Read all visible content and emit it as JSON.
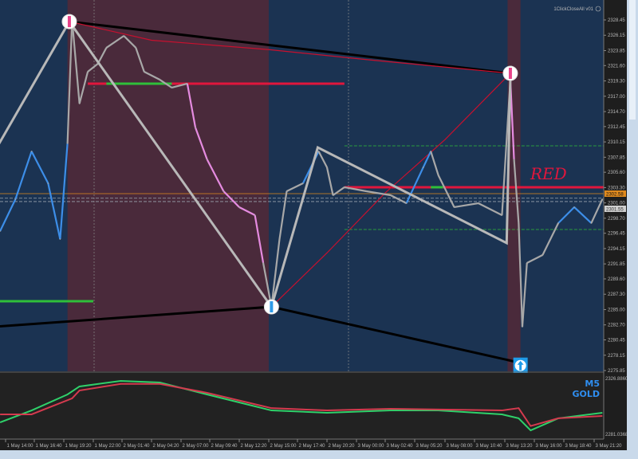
{
  "window": {
    "expert_label": "1ClickCloseAll v01",
    "info_icon": "info-circle-icon"
  },
  "panel_labels": {
    "timeframe": "M5",
    "symbol": "GOLD"
  },
  "annotation_text": "RED",
  "price_tags": {
    "orange": "2302.58",
    "gray": "2301.55"
  },
  "indicator_scale": {
    "top": "2326.8860",
    "bottom": "2281.0368"
  },
  "colors": {
    "background": "#1b3352",
    "session_shade": "#4a2a3b",
    "price": "#a8a8a8",
    "price_up": "#3d8ee8",
    "price_down": "#e58be0",
    "level_red": "#e0163c",
    "level_green": "#2fbf3a",
    "zigzag": "#b8b8b8",
    "trend_black": "#000000",
    "curve_red": "#c8102e",
    "orange": "#e08a1e",
    "indicator_green": "#2fd16a",
    "indicator_red": "#d43a4e"
  },
  "chart_data": {
    "type": "line",
    "title": "",
    "ylim": [
      2275.85,
      2328.45
    ],
    "y_ticks": [
      "2328.45",
      "2326.15",
      "2323.85",
      "2321.60",
      "2319.30",
      "2317.00",
      "2314.70",
      "2312.45",
      "2310.15",
      "2307.85",
      "2305.60",
      "2303.30",
      "2301.00",
      "2298.70",
      "2296.45",
      "2294.15",
      "2291.85",
      "2289.60",
      "2287.30",
      "2285.00",
      "2282.70",
      "2280.45",
      "2278.15",
      "2275.85"
    ],
    "x_ticks": [
      "1 May 14:00",
      "1 May 16:40",
      "1 May 19:20",
      "1 May 22:00",
      "2 May 01:40",
      "2 May 04:20",
      "2 May 07:00",
      "2 May 09:40",
      "2 May 12:20",
      "2 May 15:00",
      "2 May 17:40",
      "2 May 20:20",
      "3 May 00:00",
      "3 May 02:40",
      "3 May 05:20",
      "3 May 08:00",
      "3 May 10:40",
      "3 May 13:20",
      "3 May 16:00",
      "3 May 18:40",
      "3 May 21:20"
    ],
    "sessions_shaded": [
      [
        "1 May 19:40",
        "2 May 15:00"
      ],
      [
        "3 May 13:35",
        "3 May 14:45"
      ]
    ],
    "price_series": [
      [
        "1 May 13:30",
        2296.77,
        "up"
      ],
      [
        "1 May 14:55",
        2301.55,
        "up"
      ],
      [
        "1 May 16:25",
        2308.73,
        "up"
      ],
      [
        "1 May 17:55",
        2303.94,
        "up"
      ],
      [
        "1 May 19:00",
        2295.57,
        "up"
      ],
      [
        "1 May 19:40",
        2309.92,
        "up"
      ],
      [
        "1 May 20:05",
        2328.45,
        "gray"
      ],
      [
        "1 May 20:45",
        2315.9,
        "gray"
      ],
      [
        "1 May 21:30",
        2320.68,
        "gray"
      ],
      [
        "1 May 22:35",
        2321.87,
        "gray"
      ],
      [
        "1 May 23:40",
        2324.27,
        "gray"
      ],
      [
        "2 May 01:50",
        2326.06,
        "gray"
      ],
      [
        "2 May 02:55",
        2324.27,
        "gray"
      ],
      [
        "2 May 03:40",
        2320.68,
        "gray"
      ],
      [
        "2 May 05:05",
        2319.48,
        "gray"
      ],
      [
        "2 May 06:10",
        2318.29,
        "gray"
      ],
      [
        "2 May 07:35",
        2318.89,
        "gray"
      ],
      [
        "2 May 08:20",
        2312.31,
        "down"
      ],
      [
        "2 May 09:25",
        2307.53,
        "down"
      ],
      [
        "2 May 10:55",
        2302.75,
        "down"
      ],
      [
        "2 May 12:20",
        2300.36,
        "down"
      ],
      [
        "2 May 13:45",
        2299.16,
        "down"
      ],
      [
        "2 May 14:30",
        2291.99,
        "down"
      ],
      [
        "2 May 15:15",
        2285.41,
        "gray"
      ],
      [
        "2 May 16:00",
        2295.57,
        "gray"
      ],
      [
        "2 May 16:40",
        2302.75,
        "gray"
      ],
      [
        "2 May 18:10",
        2303.94,
        "gray"
      ],
      [
        "2 May 19:35",
        2308.73,
        "up"
      ],
      [
        "2 May 20:20",
        2306.33,
        "gray"
      ],
      [
        "2 May 21:05",
        2302.15,
        "gray"
      ],
      [
        "2 May 22:30",
        2303.35,
        "gray"
      ],
      [
        "3 May 00:55",
        2302.75,
        "gray"
      ],
      [
        "3 May 03:10",
        2302.15,
        "gray"
      ],
      [
        "3 May 04:35",
        2300.95,
        "gray"
      ],
      [
        "3 May 06:05",
        2306.33,
        "up"
      ],
      [
        "3 May 06:45",
        2308.73,
        "up"
      ],
      [
        "3 May 07:25",
        2305.14,
        "gray"
      ],
      [
        "3 May 08:50",
        2300.36,
        "gray"
      ],
      [
        "3 May 11:00",
        2300.95,
        "gray"
      ],
      [
        "3 May 13:05",
        2299.16,
        "gray"
      ],
      [
        "3 May 13:50",
        2319.48,
        "gray"
      ],
      [
        "3 May 14:10",
        2307.53,
        "down"
      ],
      [
        "3 May 14:35",
        2297.97,
        "gray"
      ],
      [
        "3 May 14:55",
        2282.42,
        "gray"
      ],
      [
        "3 May 15:20",
        2291.99,
        "gray"
      ],
      [
        "3 May 16:45",
        2293.18,
        "gray"
      ],
      [
        "3 May 18:10",
        2297.97,
        "gray"
      ],
      [
        "3 May 19:35",
        2300.36,
        "up"
      ],
      [
        "3 May 21:05",
        2297.97,
        "up"
      ],
      [
        "3 May 22:05",
        2301.55,
        "gray"
      ]
    ],
    "horizontal_levels": [
      {
        "price": 2318.89,
        "from": "1 May 21:30",
        "to": "2 May 22:30",
        "color": "red",
        "green_from": "1 May 23:40",
        "green_to": "2 May 06:10"
      },
      {
        "price": 2303.35,
        "from": "2 May 22:30",
        "to": "3 May 22:30",
        "color": "red",
        "green_from": "3 May 06:45",
        "green_to": "3 May 07:50"
      },
      {
        "price": 2286.25,
        "from": "1 May 13:00",
        "to": "1 May 22:00",
        "color": "green"
      },
      {
        "price": 2302.39,
        "color": "orange",
        "style": "solid"
      },
      {
        "price": 2301.7,
        "color": "gray",
        "style": "dashed"
      },
      {
        "price": 2301.2,
        "color": "gray",
        "style": "dashed"
      },
      {
        "price": 2309.56,
        "from": "2 May 22:30",
        "color": "green",
        "style": "dashed"
      },
      {
        "price": 2297.01,
        "from": "2 May 22:30",
        "color": "green",
        "style": "dashed"
      }
    ],
    "zigzag": [
      [
        "1 May 13:00",
        2308.73
      ],
      [
        "1 May 19:50",
        2328.2
      ],
      [
        "2 May 15:15",
        2285.41
      ],
      [
        "2 May 19:30",
        2309.32
      ],
      [
        "3 May 13:30",
        2294.98
      ],
      [
        "3 May 13:50",
        2319.72
      ]
    ],
    "trendlines_black": [
      [
        [
          "1 May 19:50",
          2328.2
        ],
        [
          "3 May 13:50",
          2320.44
        ]
      ],
      [
        [
          "1 May 13:00",
          2282.42
        ],
        [
          "2 May 15:15",
          2285.41
        ]
      ],
      [
        [
          "2 May 15:15",
          2285.41
        ],
        [
          "3 May 14:45",
          2277.0
        ]
      ]
    ],
    "curves_red": [
      [
        [
          "1 May 19:50",
          2328.2
        ],
        [
          "2 May 04:20",
          2325.4
        ],
        [
          "2 May 15:00",
          2324.0
        ],
        [
          "3 May 00:55",
          2322.5
        ],
        [
          "3 May 13:50",
          2320.44
        ]
      ],
      [
        [
          "1 May 19:50",
          2328.2
        ],
        [
          "2 May 15:15",
          2285.41
        ],
        [
          "2 May 20:20",
          2293.5
        ],
        [
          "3 May 02:40",
          2302.5
        ],
        [
          "3 May 08:00",
          2310.5
        ],
        [
          "3 May 13:50",
          2320.44
        ]
      ]
    ],
    "markers": [
      {
        "time": "1 May 19:50",
        "price": 2328.2,
        "kind": "sell-circle"
      },
      {
        "time": "3 May 13:50",
        "price": 2320.44,
        "kind": "sell-circle"
      },
      {
        "time": "2 May 15:15",
        "price": 2285.41,
        "kind": "buy-circle"
      },
      {
        "time": "3 May 14:45",
        "price": 2276.6,
        "kind": "buy-arrow-up"
      }
    ],
    "indicator": {
      "ylim": [
        2281.0368,
        2326.886
      ],
      "series": [
        {
          "color": "green",
          "points": [
            [
              "1 May 13:30",
              2291.6
            ],
            [
              "1 May 16:25",
              2300.4
            ],
            [
              "1 May 19:40",
              2312.2
            ],
            [
              "1 May 20:45",
              2318.1
            ],
            [
              "2 May 01:30",
              2322.2
            ],
            [
              "2 May 05:05",
              2321.0
            ],
            [
              "2 May 09:25",
              2312.2
            ],
            [
              "2 May 15:15",
              2300.4
            ],
            [
              "2 May 20:20",
              2298.7
            ],
            [
              "3 May 03:10",
              2300.4
            ],
            [
              "3 May 07:25",
              2300.4
            ],
            [
              "3 May 13:05",
              2297.5
            ],
            [
              "3 May 14:35",
              2294.6
            ],
            [
              "3 May 15:40",
              2285.7
            ],
            [
              "3 May 18:10",
              2294.6
            ],
            [
              "3 May 22:05",
              2298.7
            ]
          ]
        },
        {
          "color": "red",
          "points": [
            [
              "1 May 13:30",
              2297.5
            ],
            [
              "1 May 16:25",
              2297.5
            ],
            [
              "1 May 20:05",
              2309.3
            ],
            [
              "1 May 20:45",
              2315.1
            ],
            [
              "2 May 01:30",
              2320.0
            ],
            [
              "2 May 05:05",
              2320.0
            ],
            [
              "2 May 09:25",
              2313.4
            ],
            [
              "2 May 15:15",
              2302.1
            ],
            [
              "2 May 20:20",
              2300.4
            ],
            [
              "3 May 03:10",
              2301.6
            ],
            [
              "3 May 13:05",
              2300.4
            ],
            [
              "3 May 14:35",
              2302.1
            ],
            [
              "3 May 15:40",
              2288.9
            ],
            [
              "3 May 18:10",
              2294.6
            ],
            [
              "3 May 22:05",
              2296.3
            ]
          ]
        }
      ]
    }
  }
}
